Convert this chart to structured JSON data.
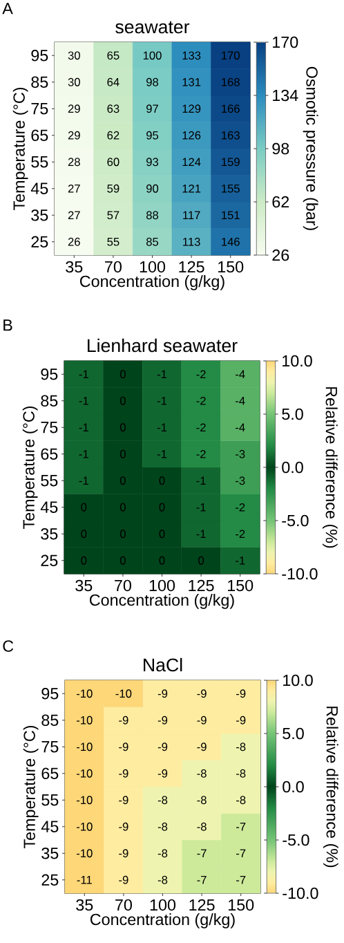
{
  "chart_data": [
    {
      "type": "heatmap",
      "title": "seawater",
      "xlabel": "Concentration (g/kg)",
      "ylabel": "Temperature (°C)",
      "clabel": "Osmotic pressure (bar)",
      "annotations": [
        "A"
      ],
      "categories": [
        "35",
        "70",
        "100",
        "125",
        "150"
      ],
      "y_categories": [
        "95",
        "85",
        "75",
        "65",
        "55",
        "45",
        "35",
        "25"
      ],
      "cells": [
        [
          30,
          65,
          100,
          133,
          170
        ],
        [
          30,
          64,
          98,
          131,
          168
        ],
        [
          29,
          63,
          97,
          129,
          166
        ],
        [
          29,
          62,
          95,
          126,
          163
        ],
        [
          28,
          60,
          93,
          124,
          159
        ],
        [
          27,
          59,
          90,
          121,
          155
        ],
        [
          27,
          57,
          88,
          117,
          151
        ],
        [
          26,
          55,
          85,
          113,
          146
        ]
      ],
      "clim": [
        26,
        170
      ],
      "cticks": [
        26,
        62,
        98,
        134,
        170
      ],
      "data_labels": true
    },
    {
      "type": "heatmap",
      "title": "Lienhard seawater",
      "xlabel": "Concentration (g/kg)",
      "ylabel": "Temperature (°C)",
      "clabel": "Relative difference (%)",
      "annotations": [
        "B"
      ],
      "categories": [
        "35",
        "70",
        "100",
        "125",
        "150"
      ],
      "y_categories": [
        "95",
        "85",
        "75",
        "65",
        "55",
        "45",
        "35",
        "25"
      ],
      "cells": [
        [
          -1,
          0,
          -1,
          -2,
          -4
        ],
        [
          -1,
          0,
          -1,
          -2,
          -4
        ],
        [
          -1,
          0,
          -1,
          -2,
          -4
        ],
        [
          -1,
          0,
          -1,
          -2,
          -3
        ],
        [
          -1,
          0,
          0,
          -1,
          -3
        ],
        [
          0,
          0,
          0,
          -1,
          -2
        ],
        [
          0,
          0,
          0,
          -1,
          -2
        ],
        [
          0,
          0,
          0,
          0,
          -1
        ]
      ],
      "clim": [
        -10,
        10
      ],
      "cticks": [
        {
          "value": -10,
          "label": "-10.0"
        },
        {
          "value": -5,
          "label": "-5.0"
        },
        {
          "value": 0,
          "label": "0.0"
        },
        {
          "value": 5,
          "label": "5.0"
        },
        {
          "value": 10,
          "label": "10.0"
        }
      ],
      "data_labels": true
    },
    {
      "type": "heatmap",
      "title": "NaCl",
      "xlabel": "Concentration (g/kg)",
      "ylabel": "Temperature (°C)",
      "clabel": "Relative difference (%)",
      "annotations": [
        "C"
      ],
      "categories": [
        "35",
        "70",
        "100",
        "125",
        "150"
      ],
      "y_categories": [
        "95",
        "85",
        "75",
        "65",
        "55",
        "45",
        "35",
        "25"
      ],
      "cells": [
        [
          -10,
          -10,
          -9,
          -9,
          -9
        ],
        [
          -10,
          -9,
          -9,
          -9,
          -9
        ],
        [
          -10,
          -9,
          -9,
          -9,
          -8
        ],
        [
          -10,
          -9,
          -9,
          -8,
          -8
        ],
        [
          -10,
          -9,
          -8,
          -8,
          -8
        ],
        [
          -10,
          -9,
          -8,
          -8,
          -7
        ],
        [
          -10,
          -9,
          -8,
          -7,
          -7
        ],
        [
          -11,
          -9,
          -8,
          -7,
          -7
        ]
      ],
      "clim": [
        -10,
        10
      ],
      "cticks": [
        {
          "value": -10,
          "label": "-10.0"
        },
        {
          "value": -5,
          "label": "-5.0"
        },
        {
          "value": 0,
          "label": "0.0"
        },
        {
          "value": 5,
          "label": "5.0"
        },
        {
          "value": 10,
          "label": "10.0"
        }
      ],
      "data_labels": true
    }
  ]
}
